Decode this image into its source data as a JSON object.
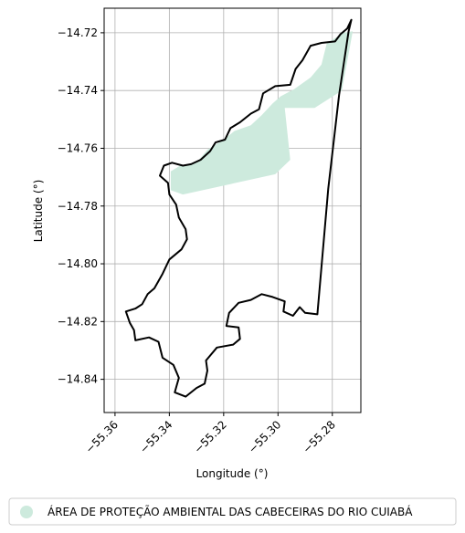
{
  "chart_data": {
    "type": "map",
    "xlabel": "Longitude (°)",
    "ylabel": "Latitude (°)",
    "xlim": [
      -55.364,
      -55.2695
    ],
    "ylim": [
      -14.8515,
      -14.7115
    ],
    "xticks": [
      -55.36,
      -55.34,
      -55.32,
      -55.3,
      -55.28
    ],
    "xtick_labels": [
      "−55.36",
      "−55.34",
      "−55.32",
      "−55.30",
      "−55.28"
    ],
    "yticks": [
      -14.72,
      -14.74,
      -14.76,
      -14.78,
      -14.8,
      -14.82,
      -14.84
    ],
    "ytick_labels": [
      "−14.72",
      "−14.74",
      "−14.76",
      "−14.78",
      "−14.80",
      "−14.82",
      "−14.84"
    ],
    "grid": true,
    "legend_position": "bottom",
    "legend": [
      {
        "label": "ÁREA DE PROTEÇÃO AMBIENTAL DAS CABECEIRAS DO RIO CUIABÁ",
        "color": "#cdeadd"
      }
    ],
    "area_polygon": [
      [
        -55.2725,
        -14.7195
      ],
      [
        -55.276,
        -14.72
      ],
      [
        -55.28,
        -14.7225
      ],
      [
        -55.282,
        -14.7235
      ],
      [
        -55.284,
        -14.731
      ],
      [
        -55.288,
        -14.7355
      ],
      [
        -55.294,
        -14.7395
      ],
      [
        -55.299,
        -14.742
      ],
      [
        -55.302,
        -14.7445
      ],
      [
        -55.306,
        -14.7485
      ],
      [
        -55.31,
        -14.752
      ],
      [
        -55.316,
        -14.754
      ],
      [
        -55.32,
        -14.757
      ],
      [
        -55.326,
        -14.7605
      ],
      [
        -55.33,
        -14.765
      ],
      [
        -55.336,
        -14.766
      ],
      [
        -55.3395,
        -14.768
      ],
      [
        -55.3395,
        -14.7745
      ],
      [
        -55.335,
        -14.776
      ],
      [
        -55.301,
        -14.769
      ],
      [
        -55.2955,
        -14.764
      ],
      [
        -55.2975,
        -14.746
      ],
      [
        -55.2865,
        -14.746
      ],
      [
        -55.2765,
        -14.74
      ]
    ],
    "boundary": [
      [
        -55.273,
        -14.7155
      ],
      [
        -55.2745,
        -14.7185
      ],
      [
        -55.277,
        -14.7205
      ],
      [
        -55.279,
        -14.723
      ],
      [
        -55.284,
        -14.7235
      ],
      [
        -55.288,
        -14.7245
      ],
      [
        -55.291,
        -14.7295
      ],
      [
        -55.2935,
        -14.7325
      ],
      [
        -55.2955,
        -14.738
      ],
      [
        -55.301,
        -14.7385
      ],
      [
        -55.3055,
        -14.741
      ],
      [
        -55.307,
        -14.7465
      ],
      [
        -55.31,
        -14.748
      ],
      [
        -55.314,
        -14.751
      ],
      [
        -55.3175,
        -14.753
      ],
      [
        -55.3195,
        -14.757
      ],
      [
        -55.323,
        -14.758
      ],
      [
        -55.325,
        -14.761
      ],
      [
        -55.3285,
        -14.764
      ],
      [
        -55.332,
        -14.7655
      ],
      [
        -55.335,
        -14.766
      ],
      [
        -55.339,
        -14.765
      ],
      [
        -55.342,
        -14.766
      ],
      [
        -55.3435,
        -14.7695
      ],
      [
        -55.3405,
        -14.772
      ],
      [
        -55.34,
        -14.776
      ],
      [
        -55.3375,
        -14.7795
      ],
      [
        -55.3365,
        -14.784
      ],
      [
        -55.334,
        -14.788
      ],
      [
        -55.3335,
        -14.7915
      ],
      [
        -55.3355,
        -14.795
      ],
      [
        -55.34,
        -14.7985
      ],
      [
        -55.3425,
        -14.8035
      ],
      [
        -55.3455,
        -14.8085
      ],
      [
        -55.348,
        -14.8105
      ],
      [
        -55.35,
        -14.814
      ],
      [
        -55.3525,
        -14.8155
      ],
      [
        -55.356,
        -14.8165
      ],
      [
        -55.3545,
        -14.8205
      ],
      [
        -55.353,
        -14.823
      ],
      [
        -55.3525,
        -14.8265
      ],
      [
        -55.3475,
        -14.8255
      ],
      [
        -55.344,
        -14.827
      ],
      [
        -55.3425,
        -14.8325
      ],
      [
        -55.3385,
        -14.835
      ],
      [
        -55.3365,
        -14.8395
      ],
      [
        -55.338,
        -14.8445
      ],
      [
        -55.334,
        -14.846
      ],
      [
        -55.33,
        -14.843
      ],
      [
        -55.327,
        -14.8415
      ],
      [
        -55.326,
        -14.837
      ],
      [
        -55.3265,
        -14.8335
      ],
      [
        -55.3225,
        -14.829
      ],
      [
        -55.3165,
        -14.828
      ],
      [
        -55.314,
        -14.826
      ],
      [
        -55.3145,
        -14.822
      ],
      [
        -55.319,
        -14.8215
      ],
      [
        -55.318,
        -14.817
      ],
      [
        -55.3145,
        -14.8135
      ],
      [
        -55.31,
        -14.8125
      ],
      [
        -55.306,
        -14.8105
      ],
      [
        -55.302,
        -14.8115
      ],
      [
        -55.2975,
        -14.813
      ],
      [
        -55.298,
        -14.8165
      ],
      [
        -55.2945,
        -14.818
      ],
      [
        -55.292,
        -14.815
      ],
      [
        -55.29,
        -14.817
      ],
      [
        -55.2855,
        -14.8175
      ],
      [
        -55.2815,
        -14.774
      ],
      [
        -55.2775,
        -14.7415
      ],
      [
        -55.274,
        -14.7195
      ]
    ]
  }
}
